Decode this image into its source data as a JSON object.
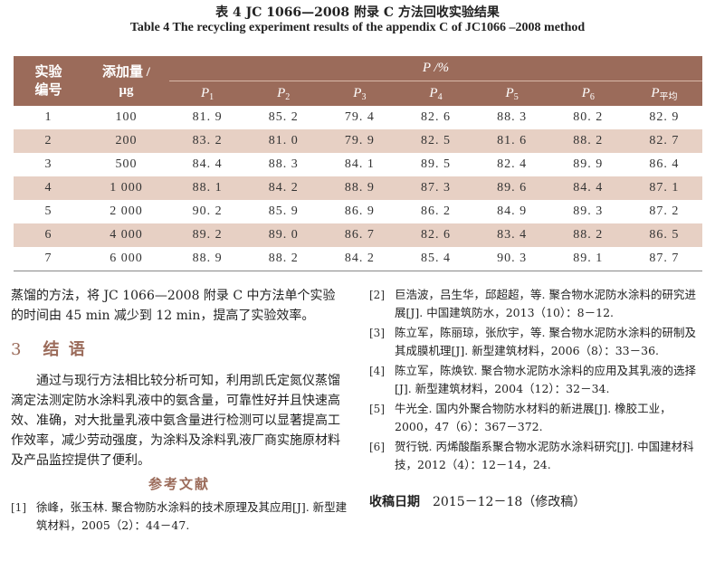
{
  "caption": {
    "cn": "表 4   JC 1066—2008 附录 C 方法回收实验结果",
    "en": "Table 4   The recycling experiment results of the appendix C of JC1066 –2008 method"
  },
  "table": {
    "col1_header_line1": "实验",
    "col1_header_line2": "编号",
    "col2_header_line1": "添加量 /",
    "col2_header_line2": "μg",
    "group_header": "P /%",
    "p_headers": [
      {
        "base": "P",
        "sub": "1"
      },
      {
        "base": "P",
        "sub": "2"
      },
      {
        "base": "P",
        "sub": "3"
      },
      {
        "base": "P",
        "sub": "4"
      },
      {
        "base": "P",
        "sub": "5"
      },
      {
        "base": "P",
        "sub": "6"
      },
      {
        "base": "P",
        "sub": "平均"
      }
    ],
    "rows": [
      [
        "1",
        "100",
        "81. 9",
        "85. 2",
        "79. 4",
        "82. 6",
        "88. 3",
        "80. 2",
        "82. 9"
      ],
      [
        "2",
        "200",
        "83. 2",
        "81. 0",
        "79. 9",
        "82. 5",
        "81. 6",
        "88. 2",
        "82. 7"
      ],
      [
        "3",
        "500",
        "84. 4",
        "88. 3",
        "84. 1",
        "89. 5",
        "82. 4",
        "89. 9",
        "86. 4"
      ],
      [
        "4",
        "1 000",
        "88. 1",
        "84. 2",
        "88. 9",
        "87. 3",
        "89. 6",
        "84. 4",
        "87. 1"
      ],
      [
        "5",
        "2 000",
        "90. 2",
        "85. 9",
        "86. 9",
        "86. 2",
        "84. 9",
        "89. 3",
        "87. 2"
      ],
      [
        "6",
        "4 000",
        "89. 2",
        "89. 0",
        "86. 7",
        "82. 6",
        "83. 4",
        "88. 2",
        "86. 5"
      ],
      [
        "7",
        "6 000",
        "88. 9",
        "88. 2",
        "84. 2",
        "85. 4",
        "90. 3",
        "89. 1",
        "87. 7"
      ]
    ],
    "colors": {
      "header_bg": "#9b6b5a",
      "stripe_bg": "#e7d0c4"
    }
  },
  "left": {
    "intro": "蒸馏的方法，将 JC 1066—2008 附录 C 中方法单个实验的时间由 45 min 减少到 12 min，提高了实验效率。",
    "section_num": "3",
    "section_title": "结  语",
    "conclusion": "通过与现行方法相比较分析可知，利用凯氏定氮仪蒸馏滴定法测定防水涂料乳液中的氨含量，可靠性好并且快速高效、准确，对大批量乳液中氨含量进行检测可以显著提高工作效率，减少劳动强度，为涂料及涂料乳液厂商实施原材料及产品监控提供了便利。",
    "refs_title": "参考文献",
    "ref1": {
      "no": "[1]",
      "text": "徐峰，张玉林. 聚合物防水涂料的技术原理及其应用[J]. 新型建筑材料，2005（2）：44－47."
    }
  },
  "right": {
    "refs": [
      {
        "no": "[2]",
        "text": "巨浩波，吕生华，邱超超，等. 聚合物水泥防水涂料的研究进展[J]. 中国建筑防水，2013（10）：8－12."
      },
      {
        "no": "[3]",
        "text": "陈立军，陈丽琼，张欣宇，等. 聚合物水泥防水涂料的研制及其成膜机理[J]. 新型建筑材料，2006（8）：33－36."
      },
      {
        "no": "[4]",
        "text": "陈立军，陈焕钦. 聚合物水泥防水涂料的应用及其乳液的选择[J]. 新型建筑材料，2004（12）：32－34."
      },
      {
        "no": "[5]",
        "text": "牛光全. 国内外聚合物防水材料的新进展[J]. 橡胶工业，2000，47（6）：367－372."
      },
      {
        "no": "[6]",
        "text": "贺行锐. 丙烯酸酯系聚合物水泥防水涂料研究[J]. 中国建材科技，2012（4）：12－14，24."
      }
    ],
    "received_label": "收稿日期",
    "received_value": "2015－12－18（修改稿）"
  }
}
